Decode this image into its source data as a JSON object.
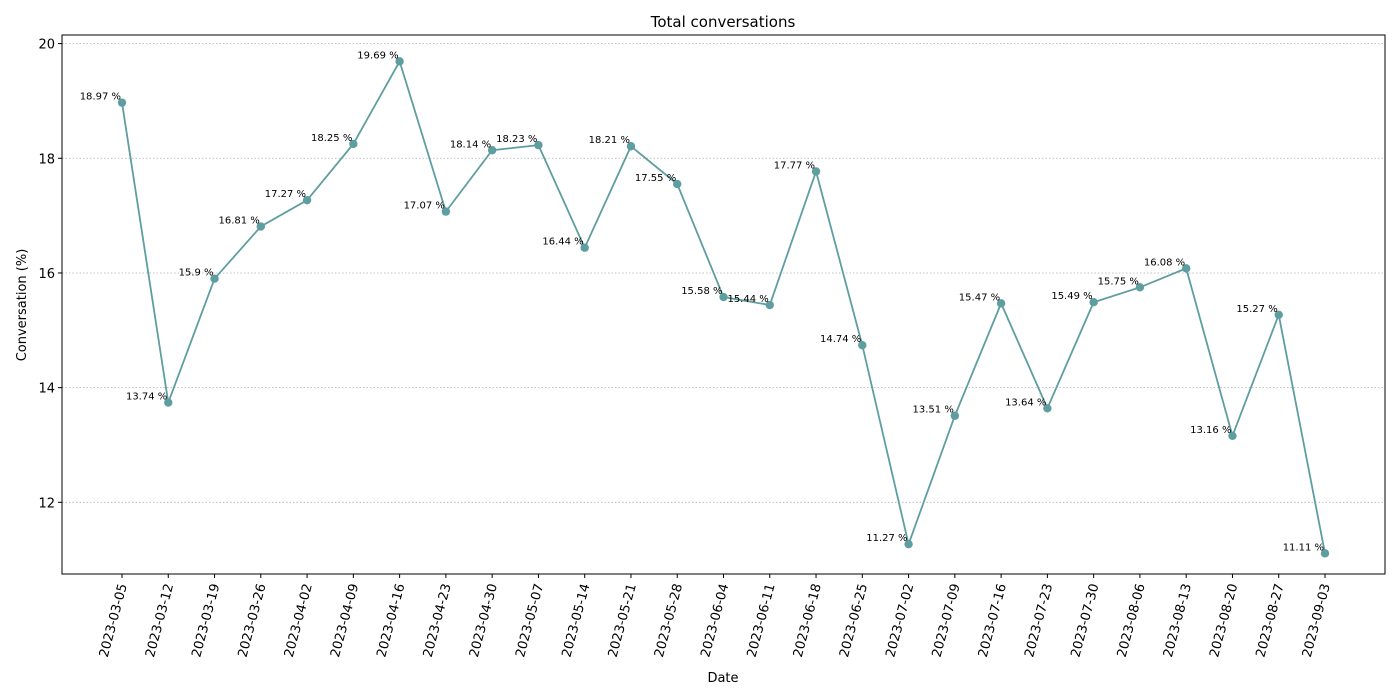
{
  "chart_data": {
    "type": "line",
    "title": "Total conversations",
    "xlabel": "Date",
    "ylabel": "Conversation (%)",
    "ylim": [
      10.75,
      20.15
    ],
    "yticks": [
      12,
      14,
      16,
      18,
      20
    ],
    "grid": "y-dotted",
    "colors": {
      "line": "#5f9ea0",
      "grid": "#b0b0b0"
    },
    "label_suffix": " %",
    "categories": [
      "2023-03-05",
      "2023-03-12",
      "2023-03-19",
      "2023-03-26",
      "2023-04-02",
      "2023-04-09",
      "2023-04-16",
      "2023-04-23",
      "2023-04-30",
      "2023-05-07",
      "2023-05-14",
      "2023-05-21",
      "2023-05-28",
      "2023-06-04",
      "2023-06-11",
      "2023-06-18",
      "2023-06-25",
      "2023-07-02",
      "2023-07-09",
      "2023-07-16",
      "2023-07-23",
      "2023-07-30",
      "2023-08-06",
      "2023-08-13",
      "2023-08-20",
      "2023-08-27",
      "2023-09-03"
    ],
    "values": [
      18.97,
      13.74,
      15.9,
      16.81,
      17.27,
      18.25,
      19.69,
      17.07,
      18.14,
      18.23,
      16.44,
      18.21,
      17.55,
      15.58,
      15.44,
      17.77,
      14.74,
      11.27,
      13.51,
      15.47,
      13.64,
      15.49,
      15.75,
      16.08,
      13.16,
      15.27,
      11.11
    ]
  }
}
